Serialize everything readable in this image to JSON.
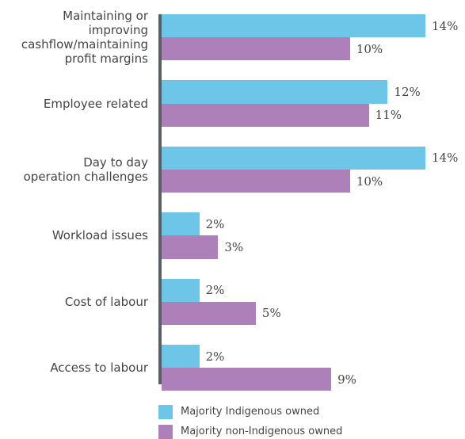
{
  "chart_data": {
    "type": "bar",
    "orientation": "horizontal",
    "categories": [
      "Maintaining or\nimproving\ncashflow/maintaining\nprofit margins",
      "Employee related",
      "Day to day\noperation challenges",
      "Workload issues",
      "Cost of labour",
      "Access to labour"
    ],
    "series": [
      {
        "name": "Majority Indigenous owned",
        "color": "#6dc5e8",
        "values": [
          14,
          12,
          14,
          2,
          2,
          2
        ],
        "value_labels": [
          "14%",
          "12%",
          "14%",
          "2%",
          "2%",
          "2%"
        ]
      },
      {
        "name": "Majority non-Indigenous owned",
        "color": "#ad80ba",
        "values": [
          10,
          11,
          10,
          3,
          5,
          9
        ],
        "value_labels": [
          "10%",
          "11%",
          "10%",
          "3%",
          "5%",
          "9%"
        ]
      }
    ],
    "xlim": [
      0,
      14
    ]
  }
}
